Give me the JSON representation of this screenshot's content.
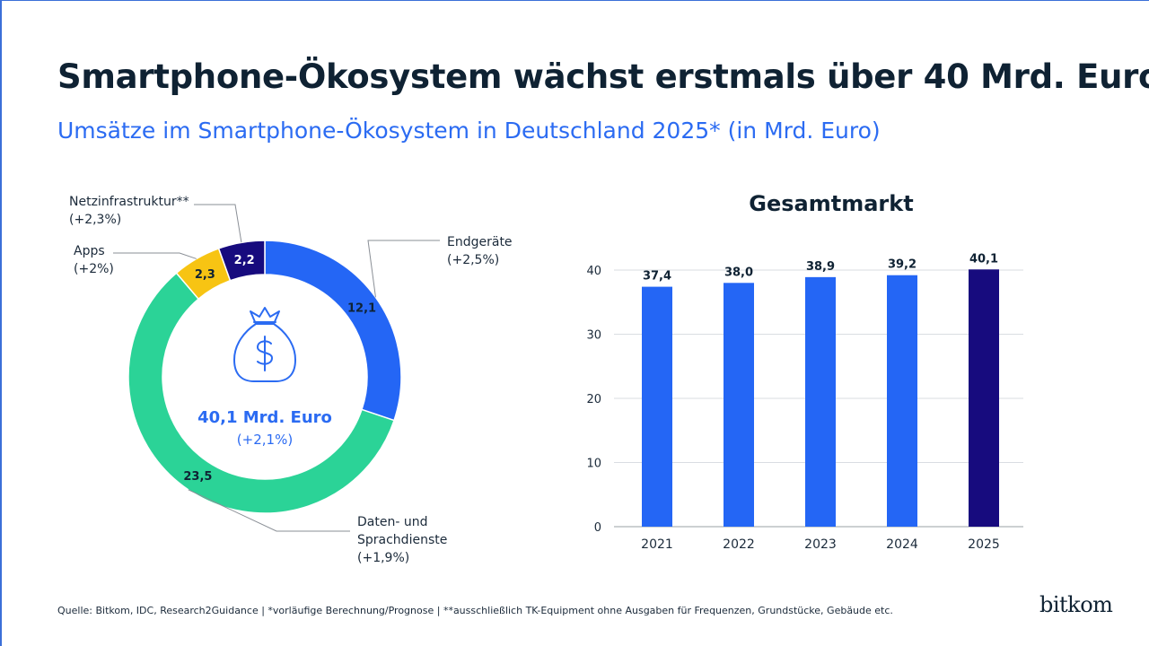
{
  "header": {
    "title": "Smartphone-Ökosystem wächst erstmals über 40 Mrd. Euro",
    "subtitle": "Umsätze im Smartphone-Ökosystem in Deutschland 2025* (in Mrd. Euro)"
  },
  "colors": {
    "endgeraete": "#2466f5",
    "daten": "#2bd397",
    "apps": "#f7c413",
    "netz": "#170b7e",
    "bar": "#2466f5",
    "bar_highlight": "#170b7e",
    "accent_text": "#2b6bf2"
  },
  "icon": "money-bag-icon",
  "footer": {
    "source": "Quelle: Bitkom, IDC, Research2Guidance  |  *vorläufige Berechnung/Prognose  |  **ausschließlich TK-Equipment ohne Ausgaben für Frequenzen, Grundstücke, Gebäude etc.",
    "logo": "bitkom"
  },
  "chart_data": [
    {
      "type": "pie",
      "variant": "donut",
      "center_label": "40,1 Mrd. Euro",
      "center_sublabel": "(+2,1%)",
      "slices": [
        {
          "label": "Endgeräte",
          "change": "(+2,5%)",
          "value": 12.1,
          "value_label": "12,1"
        },
        {
          "label": "Daten- und Sprachdienste",
          "label_lines": [
            "Daten- und",
            "Sprachdienste"
          ],
          "change": "(+1,9%)",
          "value": 23.5,
          "value_label": "23,5"
        },
        {
          "label": "Apps",
          "change": "(+2%)",
          "value": 2.3,
          "value_label": "2,3"
        },
        {
          "label": "Netzinfrastruktur**",
          "change": "(+2,3%)",
          "value": 2.2,
          "value_label": "2,2"
        }
      ]
    },
    {
      "type": "bar",
      "title": "Gesamtmarkt",
      "categories": [
        "2021",
        "2022",
        "2023",
        "2024",
        "2025"
      ],
      "values": [
        37.4,
        38.0,
        38.9,
        39.2,
        40.1
      ],
      "value_labels": [
        "37,4",
        "38,0",
        "38,9",
        "39,2",
        "40,1"
      ],
      "ylim": [
        0,
        40
      ],
      "yticks": [
        0,
        10,
        20,
        30,
        40
      ],
      "grid": true,
      "highlight_index": 4
    }
  ]
}
